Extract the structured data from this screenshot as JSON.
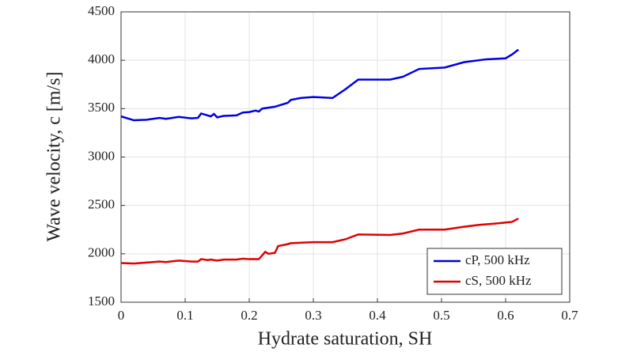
{
  "chart_data": {
    "type": "line",
    "xlabel": "Hydrate saturation, SH",
    "ylabel": "Wave velocity, c [m/s]",
    "xlim": [
      0,
      0.7
    ],
    "xticks": [
      0,
      0.1,
      0.2,
      0.3,
      0.4,
      0.5,
      0.6,
      0.7
    ],
    "ylim": [
      1500,
      4500
    ],
    "yticks": [
      1500,
      2000,
      2500,
      3000,
      3500,
      4000,
      4500
    ],
    "grid": true,
    "legend": "lower right",
    "series": [
      {
        "name": "cP, 500 kHz",
        "color": "#0000e0",
        "x": [
          0,
          0.02,
          0.04,
          0.06,
          0.07,
          0.09,
          0.11,
          0.12,
          0.125,
          0.14,
          0.145,
          0.15,
          0.16,
          0.18,
          0.19,
          0.2,
          0.21,
          0.215,
          0.22,
          0.24,
          0.25,
          0.26,
          0.265,
          0.28,
          0.3,
          0.33,
          0.35,
          0.37,
          0.42,
          0.44,
          0.465,
          0.505,
          0.535,
          0.57,
          0.6,
          0.61,
          0.62
        ],
        "values": [
          3420,
          3380,
          3385,
          3405,
          3395,
          3415,
          3400,
          3405,
          3450,
          3420,
          3445,
          3410,
          3425,
          3430,
          3460,
          3465,
          3480,
          3470,
          3500,
          3520,
          3540,
          3560,
          3590,
          3610,
          3620,
          3610,
          3700,
          3800,
          3800,
          3830,
          3910,
          3925,
          3980,
          4010,
          4020,
          4060,
          4110
        ]
      },
      {
        "name": "cS, 500 kHz",
        "color": "#e00000",
        "x": [
          0,
          0.02,
          0.04,
          0.06,
          0.07,
          0.09,
          0.11,
          0.12,
          0.125,
          0.135,
          0.14,
          0.15,
          0.16,
          0.18,
          0.19,
          0.2,
          0.215,
          0.225,
          0.23,
          0.24,
          0.245,
          0.26,
          0.265,
          0.3,
          0.33,
          0.35,
          0.37,
          0.42,
          0.44,
          0.465,
          0.505,
          0.535,
          0.56,
          0.58,
          0.61,
          0.62
        ],
        "values": [
          1905,
          1900,
          1910,
          1920,
          1915,
          1930,
          1920,
          1920,
          1945,
          1935,
          1940,
          1930,
          1940,
          1940,
          1950,
          1945,
          1945,
          2020,
          2000,
          2010,
          2080,
          2100,
          2110,
          2120,
          2120,
          2150,
          2200,
          2195,
          2210,
          2250,
          2250,
          2280,
          2300,
          2310,
          2330,
          2365
        ]
      }
    ]
  }
}
